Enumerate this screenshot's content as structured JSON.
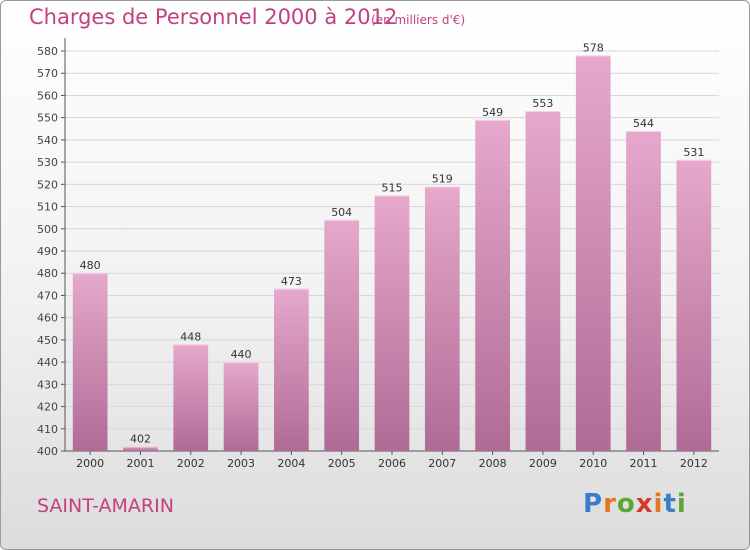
{
  "title": "Charges de Personnel 2000 à 2012",
  "subtitle": "(en milliers d'€)",
  "place": "SAINT-AMARIN",
  "logo": {
    "text": "Proxiti",
    "letter_colors": [
      "#3a7cc8",
      "#e2781f",
      "#5aa832",
      "#d23b2a",
      "#e2781f",
      "#3a7cc8",
      "#5aa832"
    ]
  },
  "colors": {
    "accent": "#c2407e",
    "bar_top": "#e6a8cc",
    "bar_bottom": "#b06b95",
    "grid": "#d8d8d8"
  },
  "chart_data": {
    "type": "bar",
    "categories": [
      "2000",
      "2001",
      "2002",
      "2003",
      "2004",
      "2005",
      "2006",
      "2007",
      "2008",
      "2009",
      "2010",
      "2011",
      "2012"
    ],
    "values": [
      480,
      402,
      448,
      440,
      473,
      504,
      515,
      519,
      549,
      553,
      578,
      544,
      531
    ],
    "yticks": [
      400,
      410,
      420,
      430,
      440,
      450,
      460,
      470,
      480,
      490,
      500,
      510,
      520,
      530,
      540,
      550,
      560,
      570,
      580
    ],
    "ylim": [
      400,
      580
    ],
    "xlabel": "",
    "ylabel": "",
    "grid": true
  }
}
